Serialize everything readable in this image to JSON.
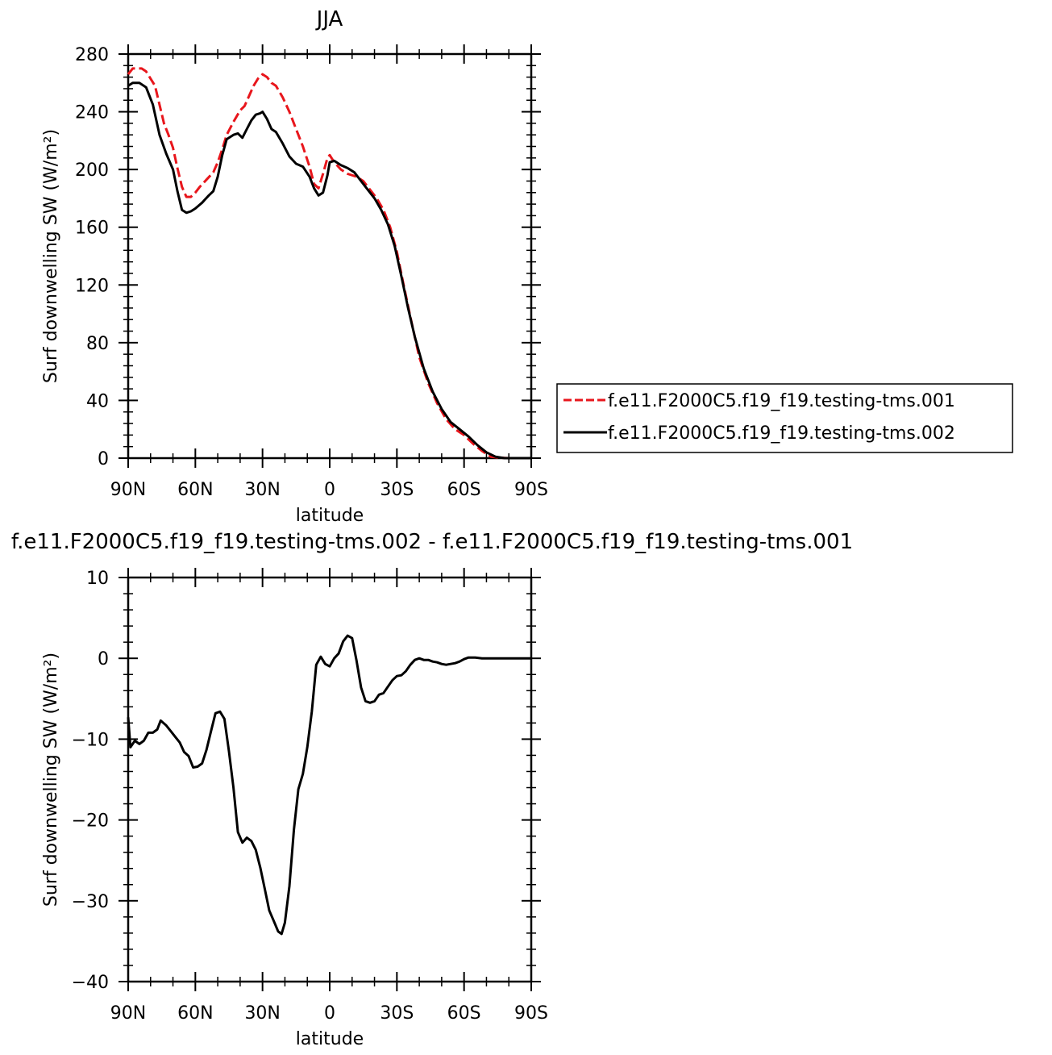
{
  "chart_data": [
    {
      "type": "line",
      "title": "JJA",
      "xlabel": "latitude",
      "ylabel": "Surf downwelling SW (W/m²)",
      "xlim": [
        90,
        -90
      ],
      "ylim": [
        0,
        280
      ],
      "x_ticks": [
        90,
        60,
        30,
        0,
        -30,
        -60,
        -90
      ],
      "x_tick_labels": [
        "90N",
        "60N",
        "30N",
        "0",
        "30S",
        "60S",
        "90S"
      ],
      "y_ticks": [
        0,
        40,
        80,
        120,
        160,
        200,
        240,
        280
      ],
      "y_tick_labels": [
        "0",
        "40",
        "80",
        "120",
        "160",
        "200",
        "240",
        "280"
      ],
      "legend_position": "right",
      "series": [
        {
          "name": "f.e11.F2000C5.f19_f19.testing-tms.001",
          "color": "#e8161c",
          "style": "dashed",
          "points": [
            [
              90,
              266
            ],
            [
              88,
              270
            ],
            [
              84,
              270
            ],
            [
              82,
              268
            ],
            [
              78,
              258
            ],
            [
              74,
              232
            ],
            [
              72,
              224
            ],
            [
              70,
              215
            ],
            [
              68,
              201
            ],
            [
              66,
              188
            ],
            [
              64,
              181
            ],
            [
              62,
              181
            ],
            [
              60,
              184
            ],
            [
              58,
              188
            ],
            [
              55,
              193
            ],
            [
              52,
              198
            ],
            [
              50,
              205
            ],
            [
              48,
              214
            ],
            [
              46,
              224
            ],
            [
              43,
              233
            ],
            [
              40,
              241
            ],
            [
              38,
              244
            ],
            [
              36,
              251
            ],
            [
              34,
              258
            ],
            [
              32,
              263
            ],
            [
              30,
              266
            ],
            [
              28,
              264
            ],
            [
              26,
              260
            ],
            [
              24,
              258
            ],
            [
              21,
              250
            ],
            [
              18,
              240
            ],
            [
              15,
              228
            ],
            [
              12,
              216
            ],
            [
              9,
              202
            ],
            [
              7,
              190
            ],
            [
              5,
              187
            ],
            [
              3,
              197
            ],
            [
              1,
              208
            ],
            [
              0,
              210
            ],
            [
              -2,
              205
            ],
            [
              -5,
              200
            ],
            [
              -8,
              197
            ],
            [
              -12,
              195
            ],
            [
              -15,
              192
            ],
            [
              -18,
              186
            ],
            [
              -21,
              180
            ],
            [
              -24,
              172
            ],
            [
              -27,
              160
            ],
            [
              -30,
              143
            ],
            [
              -33,
              120
            ],
            [
              -36,
              98
            ],
            [
              -40,
              70
            ],
            [
              -44,
              52
            ],
            [
              -48,
              38
            ],
            [
              -52,
              27
            ],
            [
              -56,
              20
            ],
            [
              -60,
              16
            ],
            [
              -64,
              10
            ],
            [
              -68,
              5
            ],
            [
              -72,
              1
            ],
            [
              -76,
              0.3
            ],
            [
              -80,
              0
            ],
            [
              -84,
              0
            ],
            [
              -90,
              0
            ]
          ]
        },
        {
          "name": "f.e11.F2000C5.f19_f19.testing-tms.002",
          "color": "#000000",
          "style": "solid",
          "points": [
            [
              90,
              258
            ],
            [
              88,
              260
            ],
            [
              85,
              260
            ],
            [
              82,
              257
            ],
            [
              79,
              245
            ],
            [
              76,
              224
            ],
            [
              73,
              211
            ],
            [
              70,
              200
            ],
            [
              68,
              185
            ],
            [
              66,
              172
            ],
            [
              64,
              170
            ],
            [
              62,
              171
            ],
            [
              60,
              173
            ],
            [
              57,
              177
            ],
            [
              54,
              182
            ],
            [
              52,
              185
            ],
            [
              50,
              195
            ],
            [
              48,
              210
            ],
            [
              46,
              221
            ],
            [
              43,
              224
            ],
            [
              41,
              225
            ],
            [
              39,
              222
            ],
            [
              37,
              228
            ],
            [
              35,
              234
            ],
            [
              33,
              238
            ],
            [
              31,
              239
            ],
            [
              30,
              240
            ],
            [
              28,
              235
            ],
            [
              26,
              228
            ],
            [
              24,
              226
            ],
            [
              21,
              218
            ],
            [
              18,
              209
            ],
            [
              15,
              204
            ],
            [
              12,
              202
            ],
            [
              9,
              195
            ],
            [
              7,
              187
            ],
            [
              5,
              182
            ],
            [
              3,
              184
            ],
            [
              1,
              196
            ],
            [
              0,
              205
            ],
            [
              -2,
              206
            ],
            [
              -5,
              203
            ],
            [
              -8,
              201
            ],
            [
              -11,
              198
            ],
            [
              -14,
              192
            ],
            [
              -17,
              186
            ],
            [
              -20,
              180
            ],
            [
              -23,
              172
            ],
            [
              -26,
              162
            ],
            [
              -29,
              147
            ],
            [
              -32,
              126
            ],
            [
              -35,
              104
            ],
            [
              -38,
              84
            ],
            [
              -42,
              62
            ],
            [
              -46,
              46
            ],
            [
              -50,
              34
            ],
            [
              -54,
              25
            ],
            [
              -58,
              20
            ],
            [
              -62,
              15
            ],
            [
              -66,
              9
            ],
            [
              -70,
              4
            ],
            [
              -74,
              1
            ],
            [
              -78,
              0
            ],
            [
              -84,
              0
            ],
            [
              -90,
              0
            ]
          ]
        }
      ]
    },
    {
      "type": "line",
      "title": "f.e11.F2000C5.f19_f19.testing-tms.002 - f.e11.F2000C5.f19_f19.testing-tms.001",
      "xlabel": "latitude",
      "ylabel": "Surf downwelling SW (W/m²)",
      "xlim": [
        90,
        -90
      ],
      "ylim": [
        -40,
        10
      ],
      "x_ticks": [
        90,
        60,
        30,
        0,
        -30,
        -60,
        -90
      ],
      "x_tick_labels": [
        "90N",
        "60N",
        "30N",
        "0",
        "30S",
        "60S",
        "90S"
      ],
      "y_ticks": [
        -40,
        -30,
        -20,
        -10,
        0,
        10
      ],
      "y_tick_labels": [
        "−40",
        "−30",
        "−20",
        "−10",
        "0",
        "10"
      ],
      "series": [
        {
          "color": "#000000",
          "style": "solid",
          "points": [
            [
              90,
              -7.3
            ],
            [
              89,
              -11
            ],
            [
              87,
              -10.2
            ],
            [
              85,
              -10.6
            ],
            [
              83,
              -10.2
            ],
            [
              81,
              -9.2
            ],
            [
              79,
              -9.2
            ],
            [
              77,
              -8.8
            ],
            [
              75.5,
              -7.7
            ],
            [
              73,
              -8.3
            ],
            [
              71,
              -9
            ],
            [
              69,
              -9.7
            ],
            [
              67,
              -10.4
            ],
            [
              65,
              -11.6
            ],
            [
              63,
              -12.1
            ],
            [
              61,
              -13.5
            ],
            [
              59,
              -13.4
            ],
            [
              57,
              -13
            ],
            [
              55,
              -11.3
            ],
            [
              53,
              -9
            ],
            [
              51,
              -6.8
            ],
            [
              49,
              -6.6
            ],
            [
              47,
              -7.5
            ],
            [
              45,
              -11.5
            ],
            [
              43,
              -16
            ],
            [
              41,
              -21.5
            ],
            [
              39,
              -22.8
            ],
            [
              37,
              -22.2
            ],
            [
              35,
              -22.6
            ],
            [
              33,
              -23.7
            ],
            [
              31,
              -25.9
            ],
            [
              29,
              -28.5
            ],
            [
              27,
              -31.2
            ],
            [
              25,
              -32.5
            ],
            [
              23,
              -33.8
            ],
            [
              21.5,
              -34.1
            ],
            [
              20,
              -32.7
            ],
            [
              18,
              -28.2
            ],
            [
              16,
              -21.2
            ],
            [
              14,
              -16.2
            ],
            [
              12,
              -14.3
            ],
            [
              10,
              -11
            ],
            [
              8,
              -6.6
            ],
            [
              6,
              -0.8
            ],
            [
              4,
              0.2
            ],
            [
              2,
              -0.7
            ],
            [
              0,
              -1
            ],
            [
              -2,
              0
            ],
            [
              -4,
              0.6
            ],
            [
              -6,
              2.1
            ],
            [
              -8,
              2.8
            ],
            [
              -10,
              2.5
            ],
            [
              -12,
              -0.3
            ],
            [
              -14,
              -3.6
            ],
            [
              -16,
              -5.3
            ],
            [
              -18,
              -5.5
            ],
            [
              -20,
              -5.3
            ],
            [
              -22,
              -4.5
            ],
            [
              -24,
              -4.3
            ],
            [
              -26,
              -3.5
            ],
            [
              -28,
              -2.7
            ],
            [
              -30,
              -2.2
            ],
            [
              -32,
              -2.1
            ],
            [
              -34,
              -1.6
            ],
            [
              -36,
              -0.8
            ],
            [
              -38,
              -0.2
            ],
            [
              -40,
              0
            ],
            [
              -42,
              -0.2
            ],
            [
              -44,
              -0.2
            ],
            [
              -46,
              -0.4
            ],
            [
              -48,
              -0.5
            ],
            [
              -50,
              -0.7
            ],
            [
              -52,
              -0.8
            ],
            [
              -54,
              -0.7
            ],
            [
              -56,
              -0.6
            ],
            [
              -58,
              -0.4
            ],
            [
              -60,
              -0.1
            ],
            [
              -62,
              0.1
            ],
            [
              -65,
              0.1
            ],
            [
              -68,
              0
            ],
            [
              -72,
              0
            ],
            [
              -76,
              0
            ],
            [
              -80,
              0
            ],
            [
              -85,
              0
            ],
            [
              -90,
              0
            ]
          ]
        }
      ]
    }
  ]
}
